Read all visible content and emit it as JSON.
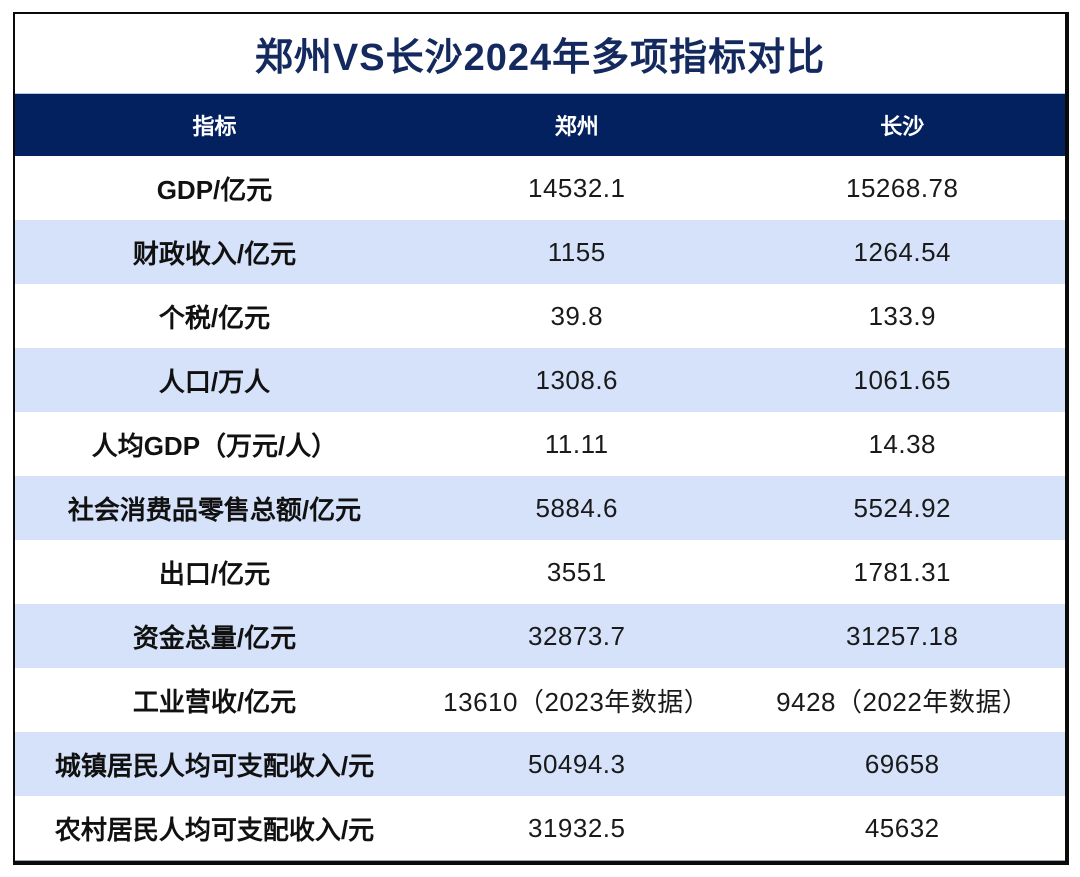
{
  "title": "郑州VS长沙2024年多项指标对比",
  "colors": {
    "header_bg": "#02215e",
    "alt_row_bg": "#d6e2fa",
    "title_color": "#14295e",
    "border_color": "#0a0a0a"
  },
  "chart_data": {
    "type": "table",
    "title": "郑州VS长沙2024年多项指标对比",
    "columns": {
      "indicator": "指标",
      "zhengzhou": "郑州",
      "changsha": "长沙"
    },
    "rows": [
      {
        "indicator": "GDP/亿元",
        "zhengzhou": "14532.1",
        "changsha": "15268.78"
      },
      {
        "indicator": "财政收入/亿元",
        "zhengzhou": "1155",
        "changsha": "1264.54"
      },
      {
        "indicator": "个税/亿元",
        "zhengzhou": "39.8",
        "changsha": "133.9"
      },
      {
        "indicator": "人口/万人",
        "zhengzhou": "1308.6",
        "changsha": "1061.65"
      },
      {
        "indicator": "人均GDP（万元/人）",
        "zhengzhou": "11.11",
        "changsha": "14.38"
      },
      {
        "indicator": "社会消费品零售总额/亿元",
        "zhengzhou": "5884.6",
        "changsha": "5524.92"
      },
      {
        "indicator": "出口/亿元",
        "zhengzhou": "3551",
        "changsha": "1781.31"
      },
      {
        "indicator": "资金总量/亿元",
        "zhengzhou": "32873.7",
        "changsha": "31257.18"
      },
      {
        "indicator": "工业营收/亿元",
        "zhengzhou": "13610（2023年数据）",
        "changsha": "9428（2022年数据）"
      },
      {
        "indicator": "城镇居民人均可支配收入/元",
        "zhengzhou": "50494.3",
        "changsha": "69658"
      },
      {
        "indicator": "农村居民人均可支配收入/元",
        "zhengzhou": "31932.5",
        "changsha": "45632"
      }
    ]
  }
}
